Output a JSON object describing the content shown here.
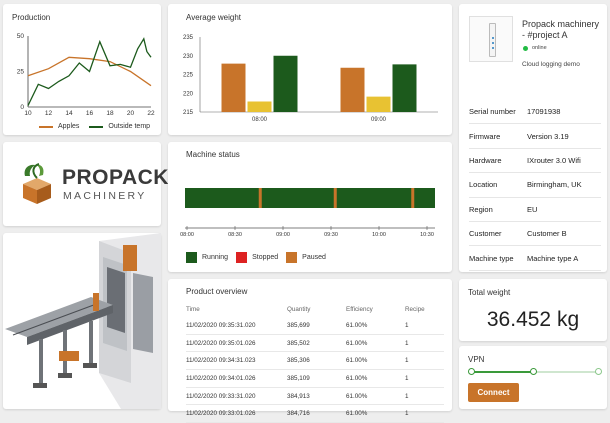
{
  "production": {
    "title": "Production",
    "chart_data": {
      "type": "line",
      "x": [
        10,
        12,
        14,
        16,
        18,
        20,
        22
      ],
      "ylim": [
        0,
        50
      ],
      "xlim": [
        10,
        22
      ],
      "yticks": [
        "0",
        "25",
        "50"
      ],
      "xticks": [
        "10",
        "12",
        "14",
        "16",
        "18",
        "20",
        "22"
      ],
      "series": [
        {
          "name": "Apples",
          "color": "#c8742a",
          "points": [
            [
              10,
              22
            ],
            [
              12,
              27
            ],
            [
              14,
              35
            ],
            [
              16,
              34
            ],
            [
              18,
              32
            ],
            [
              20,
              25
            ],
            [
              22,
              15
            ]
          ]
        },
        {
          "name": "Outside temp",
          "color": "#1c5a1c",
          "points": [
            [
              10,
              1
            ],
            [
              11,
              16
            ],
            [
              12,
              13
            ],
            [
              13,
              18
            ],
            [
              14,
              22
            ],
            [
              15,
              31
            ],
            [
              16,
              25
            ],
            [
              17,
              46
            ],
            [
              18,
              29
            ],
            [
              19,
              30
            ],
            [
              20,
              28
            ],
            [
              20.7,
              41
            ],
            [
              21.3,
              48
            ],
            [
              21.6,
              39
            ],
            [
              22,
              35
            ]
          ]
        }
      ]
    }
  },
  "weight": {
    "title": "Average weight",
    "chart_data": {
      "type": "bar",
      "categories": [
        "08:00",
        "09:00"
      ],
      "ylim": [
        215,
        235
      ],
      "yticks": [
        "215",
        "220",
        "225",
        "230",
        "235"
      ],
      "series": [
        {
          "color": "#c8742a",
          "values": [
            227.9,
            226.8
          ]
        },
        {
          "color": "#e8c232",
          "values": [
            217.8,
            219.1
          ]
        },
        {
          "color": "#1c5a1c",
          "values": [
            230,
            227.7
          ]
        }
      ]
    }
  },
  "device": {
    "name": "Propack machinery - #project A",
    "status": "online",
    "status_color": "#22bb44",
    "subtitle": "Cloud logging demo",
    "rows": [
      {
        "key": "Serial number",
        "value": "17091938"
      },
      {
        "key": "Firmware",
        "value": "Version 3.19"
      },
      {
        "key": "Hardware",
        "value": "IXrouter 3.0 Wifi"
      },
      {
        "key": "Location",
        "value": "Birmingham, UK"
      },
      {
        "key": "Region",
        "value": "EU"
      },
      {
        "key": "Customer",
        "value": "Customer B"
      },
      {
        "key": "Machine type",
        "value": "Machine type A"
      }
    ]
  },
  "logo": {
    "line1": "PROPACK",
    "line2": "MACHINERY"
  },
  "status": {
    "title": "Machine status",
    "ticks": [
      "08:00",
      "08:30",
      "09:00",
      "09:30",
      "10:00",
      "10:30"
    ],
    "legend": [
      {
        "label": "Running",
        "color": "#1c5a1c"
      },
      {
        "label": "Stopped",
        "color": "#dd2222"
      },
      {
        "label": "Paused",
        "color": "#c8742a"
      }
    ]
  },
  "overview": {
    "title": "Product overview",
    "columns": [
      "Time",
      "Quantity",
      "Efficiency",
      "Recipe"
    ],
    "rows": [
      [
        "11/02/2020 09:35:31.020",
        "385,699",
        "61.00%",
        "1"
      ],
      [
        "11/02/2020 09:35:01.026",
        "385,502",
        "61.00%",
        "1"
      ],
      [
        "11/02/2020 09:34:31.023",
        "385,306",
        "61.00%",
        "1"
      ],
      [
        "11/02/2020 09:34:01.026",
        "385,109",
        "61.00%",
        "1"
      ],
      [
        "11/02/2020 09:33:31.020",
        "384,913",
        "61.00%",
        "1"
      ],
      [
        "11/02/2020 09:33:01.026",
        "384,716",
        "61.00%",
        "1"
      ]
    ]
  },
  "total_weight": {
    "title": "Total weight",
    "value": "36.452 kg"
  },
  "vpn": {
    "title": "VPN",
    "button": "Connect"
  },
  "colors": {
    "accent": "#c8742a",
    "green": "#1c5a1c",
    "yellow": "#e8c232"
  }
}
